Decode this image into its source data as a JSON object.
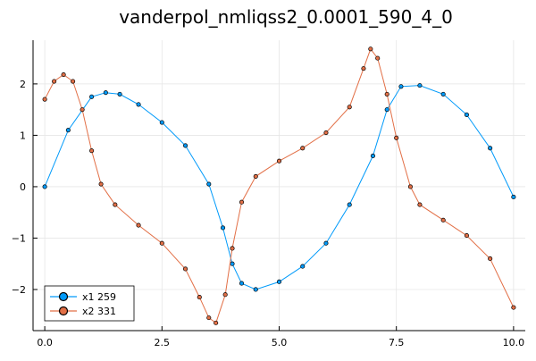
{
  "chart_data": {
    "type": "line",
    "title": "vanderpol_nmliqss2_0.0001_590_4_0",
    "xlabel": "",
    "ylabel": "",
    "xlim": [
      -0.25,
      10.25
    ],
    "ylim": [
      -2.8,
      2.85
    ],
    "x_ticks": [
      0,
      2.5,
      5,
      7.5,
      10
    ],
    "x_tick_labels": [
      "0.0",
      "2.5",
      "5.0",
      "7.5",
      "10.0"
    ],
    "y_ticks": [
      -2,
      -1,
      0,
      1,
      2
    ],
    "y_tick_labels": [
      "−2",
      "−1",
      "0",
      "1",
      "2"
    ],
    "grid": true,
    "legend_position": "bottom-left",
    "series": [
      {
        "name": "x1 259",
        "color": "#009AFA",
        "marker": "circle",
        "points": [
          [
            0.0,
            0.0
          ],
          [
            0.5,
            1.1
          ],
          [
            1.0,
            1.75
          ],
          [
            1.3,
            1.83
          ],
          [
            1.6,
            1.8
          ],
          [
            2.0,
            1.6
          ],
          [
            2.5,
            1.25
          ],
          [
            3.0,
            0.8
          ],
          [
            3.5,
            0.05
          ],
          [
            3.8,
            -0.8
          ],
          [
            4.0,
            -1.5
          ],
          [
            4.2,
            -1.88
          ],
          [
            4.5,
            -2.0
          ],
          [
            5.0,
            -1.85
          ],
          [
            5.5,
            -1.55
          ],
          [
            6.0,
            -1.1
          ],
          [
            6.5,
            -0.35
          ],
          [
            7.0,
            0.6
          ],
          [
            7.3,
            1.5
          ],
          [
            7.6,
            1.95
          ],
          [
            8.0,
            1.97
          ],
          [
            8.5,
            1.8
          ],
          [
            9.0,
            1.4
          ],
          [
            9.5,
            0.75
          ],
          [
            10.0,
            -0.2
          ]
        ]
      },
      {
        "name": "x2 331",
        "color": "#E26F46",
        "marker": "circle",
        "points": [
          [
            0.0,
            1.7
          ],
          [
            0.2,
            2.05
          ],
          [
            0.4,
            2.18
          ],
          [
            0.6,
            2.05
          ],
          [
            0.8,
            1.5
          ],
          [
            1.0,
            0.7
          ],
          [
            1.2,
            0.05
          ],
          [
            1.5,
            -0.35
          ],
          [
            2.0,
            -0.75
          ],
          [
            2.5,
            -1.1
          ],
          [
            3.0,
            -1.6
          ],
          [
            3.3,
            -2.15
          ],
          [
            3.5,
            -2.55
          ],
          [
            3.65,
            -2.65
          ],
          [
            3.85,
            -2.1
          ],
          [
            4.0,
            -1.2
          ],
          [
            4.2,
            -0.3
          ],
          [
            4.5,
            0.2
          ],
          [
            5.0,
            0.5
          ],
          [
            5.5,
            0.75
          ],
          [
            6.0,
            1.05
          ],
          [
            6.5,
            1.55
          ],
          [
            6.8,
            2.3
          ],
          [
            6.95,
            2.68
          ],
          [
            7.1,
            2.5
          ],
          [
            7.3,
            1.8
          ],
          [
            7.5,
            0.95
          ],
          [
            7.8,
            0.0
          ],
          [
            8.0,
            -0.35
          ],
          [
            8.5,
            -0.65
          ],
          [
            9.0,
            -0.95
          ],
          [
            9.5,
            -1.4
          ],
          [
            10.0,
            -2.35
          ]
        ]
      }
    ]
  }
}
